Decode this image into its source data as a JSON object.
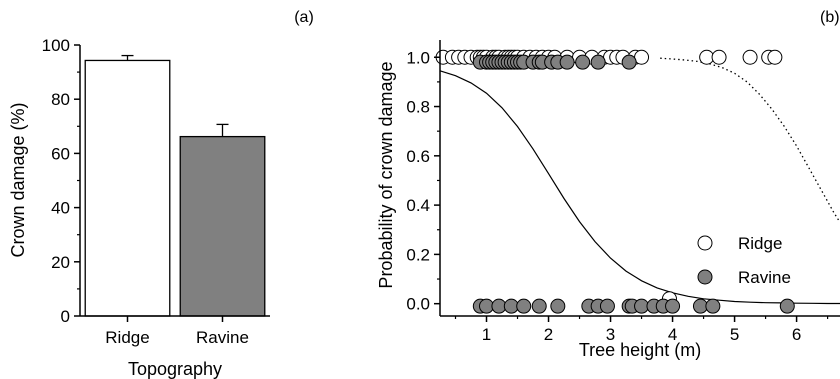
{
  "chart_data": [
    {
      "type": "bar",
      "panel_label": "(a)",
      "categories": [
        "Ridge",
        "Ravine"
      ],
      "values": [
        94.3,
        66.2
      ],
      "errors": [
        1.8,
        4.5
      ],
      "colors": [
        "#ffffff",
        "#808080"
      ],
      "xlabel": "Topography",
      "ylabel": "Crown damage (%)",
      "ylim": [
        0,
        100
      ],
      "yticks": [
        "0",
        "20",
        "40",
        "60",
        "80",
        "100"
      ],
      "grid": false
    },
    {
      "type": "scatter",
      "panel_label": "(b)",
      "xlabel": "Tree height (m)",
      "ylabel": "Probability of crown damage",
      "xlim": [
        0.25,
        6.7
      ],
      "ylim": [
        -0.05,
        1.07
      ],
      "xticks": [
        "1",
        "2",
        "3",
        "4",
        "5",
        "6"
      ],
      "yticks": [
        "0.0",
        "0.2",
        "0.4",
        "0.6",
        "0.8",
        "1.0"
      ],
      "grid": false,
      "legend_position": "right",
      "series": [
        {
          "name": "Ridge",
          "marker_color": "#ffffff",
          "x": [
            0.3,
            0.45,
            0.55,
            0.65,
            0.75,
            0.85,
            0.9,
            0.95,
            1.0,
            1.1,
            1.15,
            1.2,
            1.3,
            1.35,
            1.4,
            1.45,
            1.5,
            1.6,
            1.7,
            1.8,
            1.9,
            2.0,
            2.1,
            2.3,
            2.5,
            2.7,
            2.9,
            3.0,
            3.1,
            3.2,
            3.4,
            3.5,
            3.95,
            4.55,
            4.75,
            5.25,
            5.55,
            5.65
          ],
          "y": [
            1,
            1,
            1,
            1,
            1,
            1,
            1,
            1,
            1,
            1,
            1,
            1,
            1,
            1,
            1,
            1,
            1,
            1,
            1,
            1,
            1,
            1,
            1,
            1,
            1,
            1,
            1,
            1,
            1,
            1,
            1,
            1,
            0.02,
            1,
            1,
            1,
            1,
            1
          ],
          "curve": {
            "style": "dotted",
            "x": [
              3.8,
              4.0,
              4.2,
              4.4,
              4.6,
              4.8,
              5.0,
              5.2,
              5.4,
              5.6,
              5.8,
              6.0,
              6.2,
              6.4,
              6.6,
              6.7
            ],
            "y": [
              0.996,
              0.993,
              0.989,
              0.983,
              0.973,
              0.958,
              0.935,
              0.9,
              0.85,
              0.79,
              0.72,
              0.64,
              0.55,
              0.46,
              0.37,
              0.33
            ]
          }
        },
        {
          "name": "Ravine",
          "marker_color": "#808080",
          "x": [
            0.9,
            1.0,
            1.05,
            1.1,
            1.15,
            1.2,
            1.25,
            1.3,
            1.35,
            1.4,
            1.45,
            1.5,
            1.55,
            1.6,
            1.75,
            1.85,
            1.9,
            2.05,
            2.15,
            2.3,
            2.55,
            2.8,
            3.3,
            0.9,
            1.0,
            1.2,
            1.4,
            1.6,
            1.85,
            2.15,
            2.65,
            2.8,
            2.95,
            3.3,
            3.35,
            3.5,
            3.7,
            3.85,
            4.0,
            4.45,
            4.65,
            5.85
          ],
          "y": [
            0.98,
            0.98,
            0.98,
            0.98,
            0.98,
            0.98,
            0.98,
            0.98,
            0.98,
            0.98,
            0.98,
            0.98,
            0.98,
            0.98,
            0.98,
            0.98,
            0.98,
            0.98,
            0.98,
            0.98,
            0.98,
            0.98,
            0.98,
            -0.01,
            -0.01,
            -0.01,
            -0.01,
            -0.01,
            -0.01,
            -0.01,
            -0.01,
            -0.01,
            -0.01,
            -0.01,
            -0.01,
            -0.01,
            -0.01,
            -0.01,
            -0.01,
            -0.01,
            -0.01,
            -0.01
          ],
          "curve": {
            "style": "solid",
            "x": [
              0.25,
              0.5,
              0.75,
              1.0,
              1.25,
              1.5,
              1.75,
              2.0,
              2.25,
              2.5,
              2.75,
              3.0,
              3.25,
              3.5,
              3.75,
              4.0,
              4.25,
              4.5,
              4.75,
              5.0,
              5.25,
              5.5,
              5.75,
              6.0,
              6.25,
              6.5,
              6.7
            ],
            "y": [
              0.945,
              0.925,
              0.896,
              0.854,
              0.795,
              0.719,
              0.628,
              0.528,
              0.427,
              0.333,
              0.252,
              0.185,
              0.132,
              0.093,
              0.064,
              0.044,
              0.03,
              0.02,
              0.014,
              0.009,
              0.006,
              0.004,
              0.003,
              0.002,
              0.0014,
              0.0009,
              0.0007
            ]
          }
        }
      ]
    }
  ]
}
